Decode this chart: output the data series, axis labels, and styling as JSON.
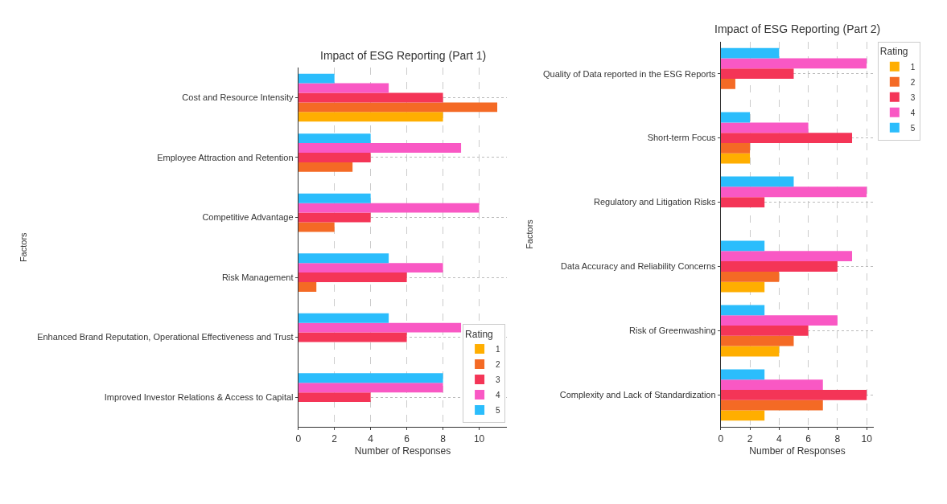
{
  "chart_data": [
    {
      "type": "bar",
      "orientation": "horizontal",
      "title": "Impact of ESG Reporting (Part 1)",
      "xlabel": "Number of Responses",
      "ylabel": "Factors",
      "legend_title": "Rating",
      "categories": [
        "Cost and Resource Intensity",
        "Employee Attraction and Retention",
        "Competitive Advantage",
        "Risk Management",
        "Enhanced Brand Reputation, Operational Effectiveness and Trust",
        "Improved Investor Relations & Access to Capital"
      ],
      "series": [
        {
          "name": "1",
          "color": "#ffae00",
          "values": [
            8,
            null,
            null,
            null,
            null,
            null
          ]
        },
        {
          "name": "2",
          "color": "#f46a25",
          "values": [
            11,
            3,
            2,
            1,
            null,
            null
          ]
        },
        {
          "name": "3",
          "color": "#f43557",
          "values": [
            8,
            4,
            4,
            6,
            6,
            4
          ]
        },
        {
          "name": "4",
          "color": "#f958c4",
          "values": [
            5,
            9,
            10,
            8,
            9,
            8
          ]
        },
        {
          "name": "5",
          "color": "#2bbdfc",
          "values": [
            2,
            4,
            4,
            5,
            5,
            8
          ]
        }
      ],
      "xlim": [
        0,
        11.55
      ],
      "xticks": [
        0,
        2,
        4,
        6,
        8,
        10
      ],
      "grid": true,
      "legend": "bottom right"
    },
    {
      "type": "bar",
      "orientation": "horizontal",
      "title": "Impact of ESG Reporting (Part 2)",
      "xlabel": "Number of Responses",
      "ylabel": "Factors",
      "legend_title": "Rating",
      "categories": [
        "Quality of Data reported in the ESG Reports",
        "Short-term Focus",
        "Regulatory and Litigation Risks",
        "Data Accuracy and Reliability Concerns",
        "Risk of Greenwashing",
        "Complexity and Lack of Standardization"
      ],
      "series": [
        {
          "name": "1",
          "color": "#ffae00",
          "values": [
            null,
            2,
            null,
            3,
            4,
            3
          ]
        },
        {
          "name": "2",
          "color": "#f46a25",
          "values": [
            1,
            2,
            null,
            4,
            5,
            7
          ]
        },
        {
          "name": "3",
          "color": "#f43557",
          "values": [
            5,
            9,
            3,
            8,
            6,
            10
          ]
        },
        {
          "name": "4",
          "color": "#f958c4",
          "values": [
            10,
            6,
            10,
            9,
            8,
            7
          ]
        },
        {
          "name": "5",
          "color": "#2bbdfc",
          "values": [
            4,
            2,
            5,
            3,
            3,
            3
          ]
        }
      ],
      "xlim": [
        0,
        10.5
      ],
      "xticks": [
        0,
        2,
        4,
        6,
        8,
        10
      ],
      "grid": true,
      "legend": "top right"
    }
  ]
}
